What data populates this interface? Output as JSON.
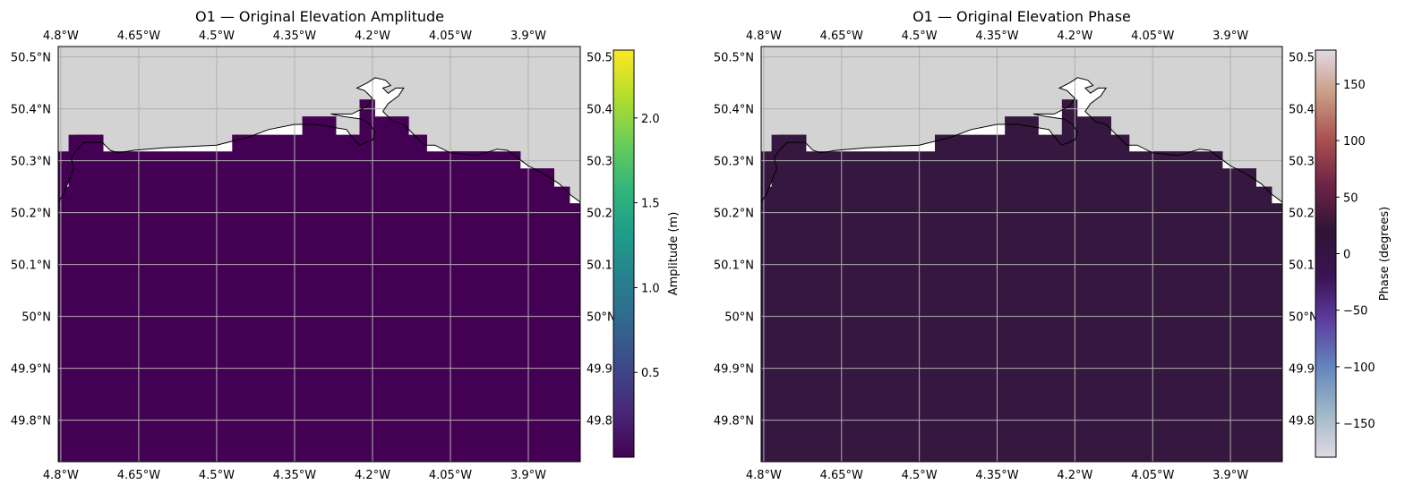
{
  "chart_data": [
    {
      "type": "heatmap",
      "title": "O1 — Original Elevation Amplitude",
      "x_ticks": [
        "4.8°W",
        "4.65°W",
        "4.5°W",
        "4.35°W",
        "4.2°W",
        "4.05°W",
        "3.9°W"
      ],
      "x_tick_values": [
        -4.8,
        -4.65,
        -4.5,
        -4.35,
        -4.2,
        -4.05,
        -3.9
      ],
      "y_ticks": [
        "50.5°N",
        "50.4°N",
        "50.3°N",
        "50.2°N",
        "50.1°N",
        "50°N",
        "49.9°N",
        "49.8°N"
      ],
      "y_tick_values": [
        50.5,
        50.4,
        50.3,
        50.2,
        50.1,
        50.0,
        49.9,
        49.8
      ],
      "right_ticks": [
        "50.5",
        "50.4",
        "50.3",
        "50.2",
        "50.1",
        "50°N",
        "49.9",
        "49.8"
      ],
      "xlim": [
        -4.805,
        -3.8
      ],
      "ylim": [
        49.72,
        50.52
      ],
      "grid": true,
      "land_color": "#d3d3d3",
      "field_color": "#440154",
      "field_value": 0.05,
      "colorbar": {
        "label": "Amplitude (m)",
        "range": [
          0.0,
          2.4
        ],
        "ticks": [
          0.5,
          1.0,
          1.5,
          2.0
        ],
        "tick_labels": [
          "0.5",
          "1.0",
          "1.5",
          "2.0"
        ],
        "colormap": "viridis",
        "stops": [
          "#440154",
          "#482878",
          "#3e4989",
          "#31688e",
          "#26828e",
          "#1f9e89",
          "#35b779",
          "#6ece58",
          "#b5de2b",
          "#fde725"
        ]
      }
    },
    {
      "type": "heatmap",
      "title": "O1 — Original Elevation Phase",
      "x_ticks": [
        "4.8°W",
        "4.65°W",
        "4.5°W",
        "4.35°W",
        "4.2°W",
        "4.05°W",
        "3.9°W"
      ],
      "x_tick_values": [
        -4.8,
        -4.65,
        -4.5,
        -4.35,
        -4.2,
        -4.05,
        -3.9
      ],
      "y_ticks": [
        "50.5°N",
        "50.4°N",
        "50.3°N",
        "50.2°N",
        "50.1°N",
        "50°N",
        "49.9°N",
        "49.8°N"
      ],
      "y_tick_values": [
        50.5,
        50.4,
        50.3,
        50.2,
        50.1,
        50.0,
        49.9,
        49.8
      ],
      "right_ticks": [
        "50.5",
        "50.4",
        "50.3",
        "50.2",
        "50.1",
        "50°N",
        "49.9",
        "49.8"
      ],
      "xlim": [
        -4.805,
        -3.8
      ],
      "ylim": [
        49.72,
        50.52
      ],
      "grid": true,
      "land_color": "#d3d3d3",
      "field_color": "#36173f",
      "field_value": -20,
      "colorbar": {
        "label": "Phase (degrees)",
        "range": [
          -180,
          180
        ],
        "ticks": [
          -150,
          -100,
          -50,
          0,
          50,
          100,
          150
        ],
        "tick_labels": [
          "−150",
          "−100",
          "−50",
          "0",
          "50",
          "100",
          "150"
        ],
        "colormap": "twilight",
        "stops": [
          "#e2d9e2",
          "#9eb7c8",
          "#6485be",
          "#5c3fa0",
          "#3b1354",
          "#2f1436",
          "#6e2346",
          "#a84f4f",
          "#c99a82",
          "#e2d9e2"
        ]
      }
    }
  ]
}
